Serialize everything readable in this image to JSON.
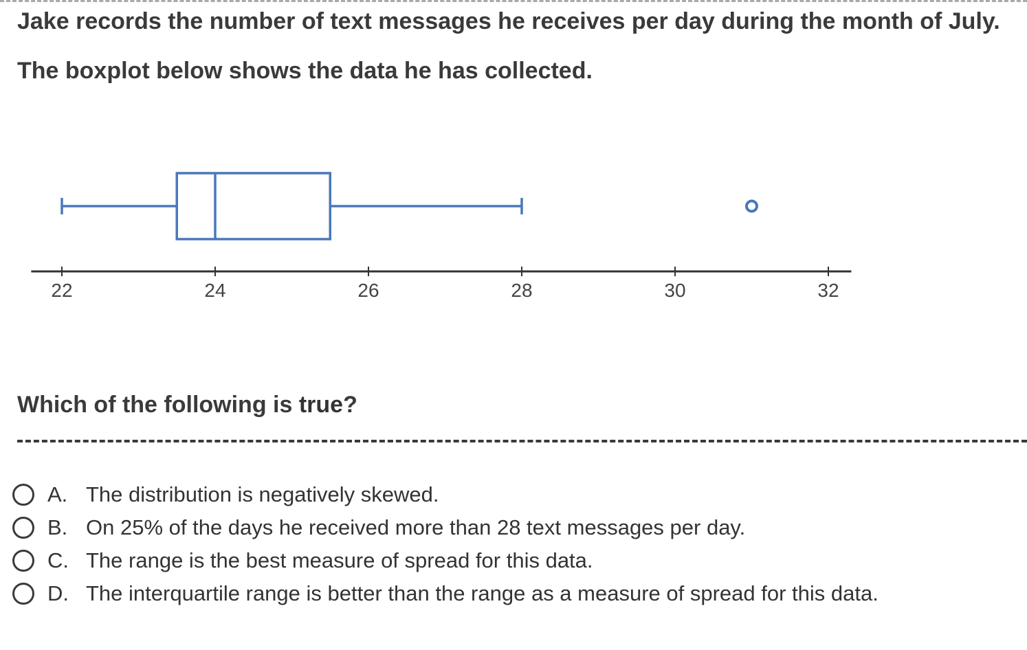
{
  "question": {
    "line1": "Jake records the number of text messages he receives per day during the month of July.",
    "line2": "The boxplot below shows the data he has collected.",
    "prompt_pre": "Which of the following is ",
    "prompt_emph": "true",
    "prompt_post": "?"
  },
  "chart_data": {
    "type": "boxplot",
    "axis_ticks": [
      22,
      24,
      26,
      28,
      30,
      32
    ],
    "xlim": [
      21.6,
      32.3
    ],
    "min": 22,
    "q1": 23.5,
    "median": 24,
    "q3": 25.5,
    "max": 28,
    "outliers": [
      31
    ],
    "colors": {
      "box": "#4a78b8",
      "axis": "#333333"
    }
  },
  "options": [
    {
      "letter": "A.",
      "text": "The distribution is negatively skewed."
    },
    {
      "letter": "B.",
      "text": "On 25% of the days he received more than 28 text messages per day."
    },
    {
      "letter": "C.",
      "text": "The range is the best measure of spread for this data."
    },
    {
      "letter": "D.",
      "text": "The interquartile range is better than the range as a measure of spread for this data."
    }
  ]
}
